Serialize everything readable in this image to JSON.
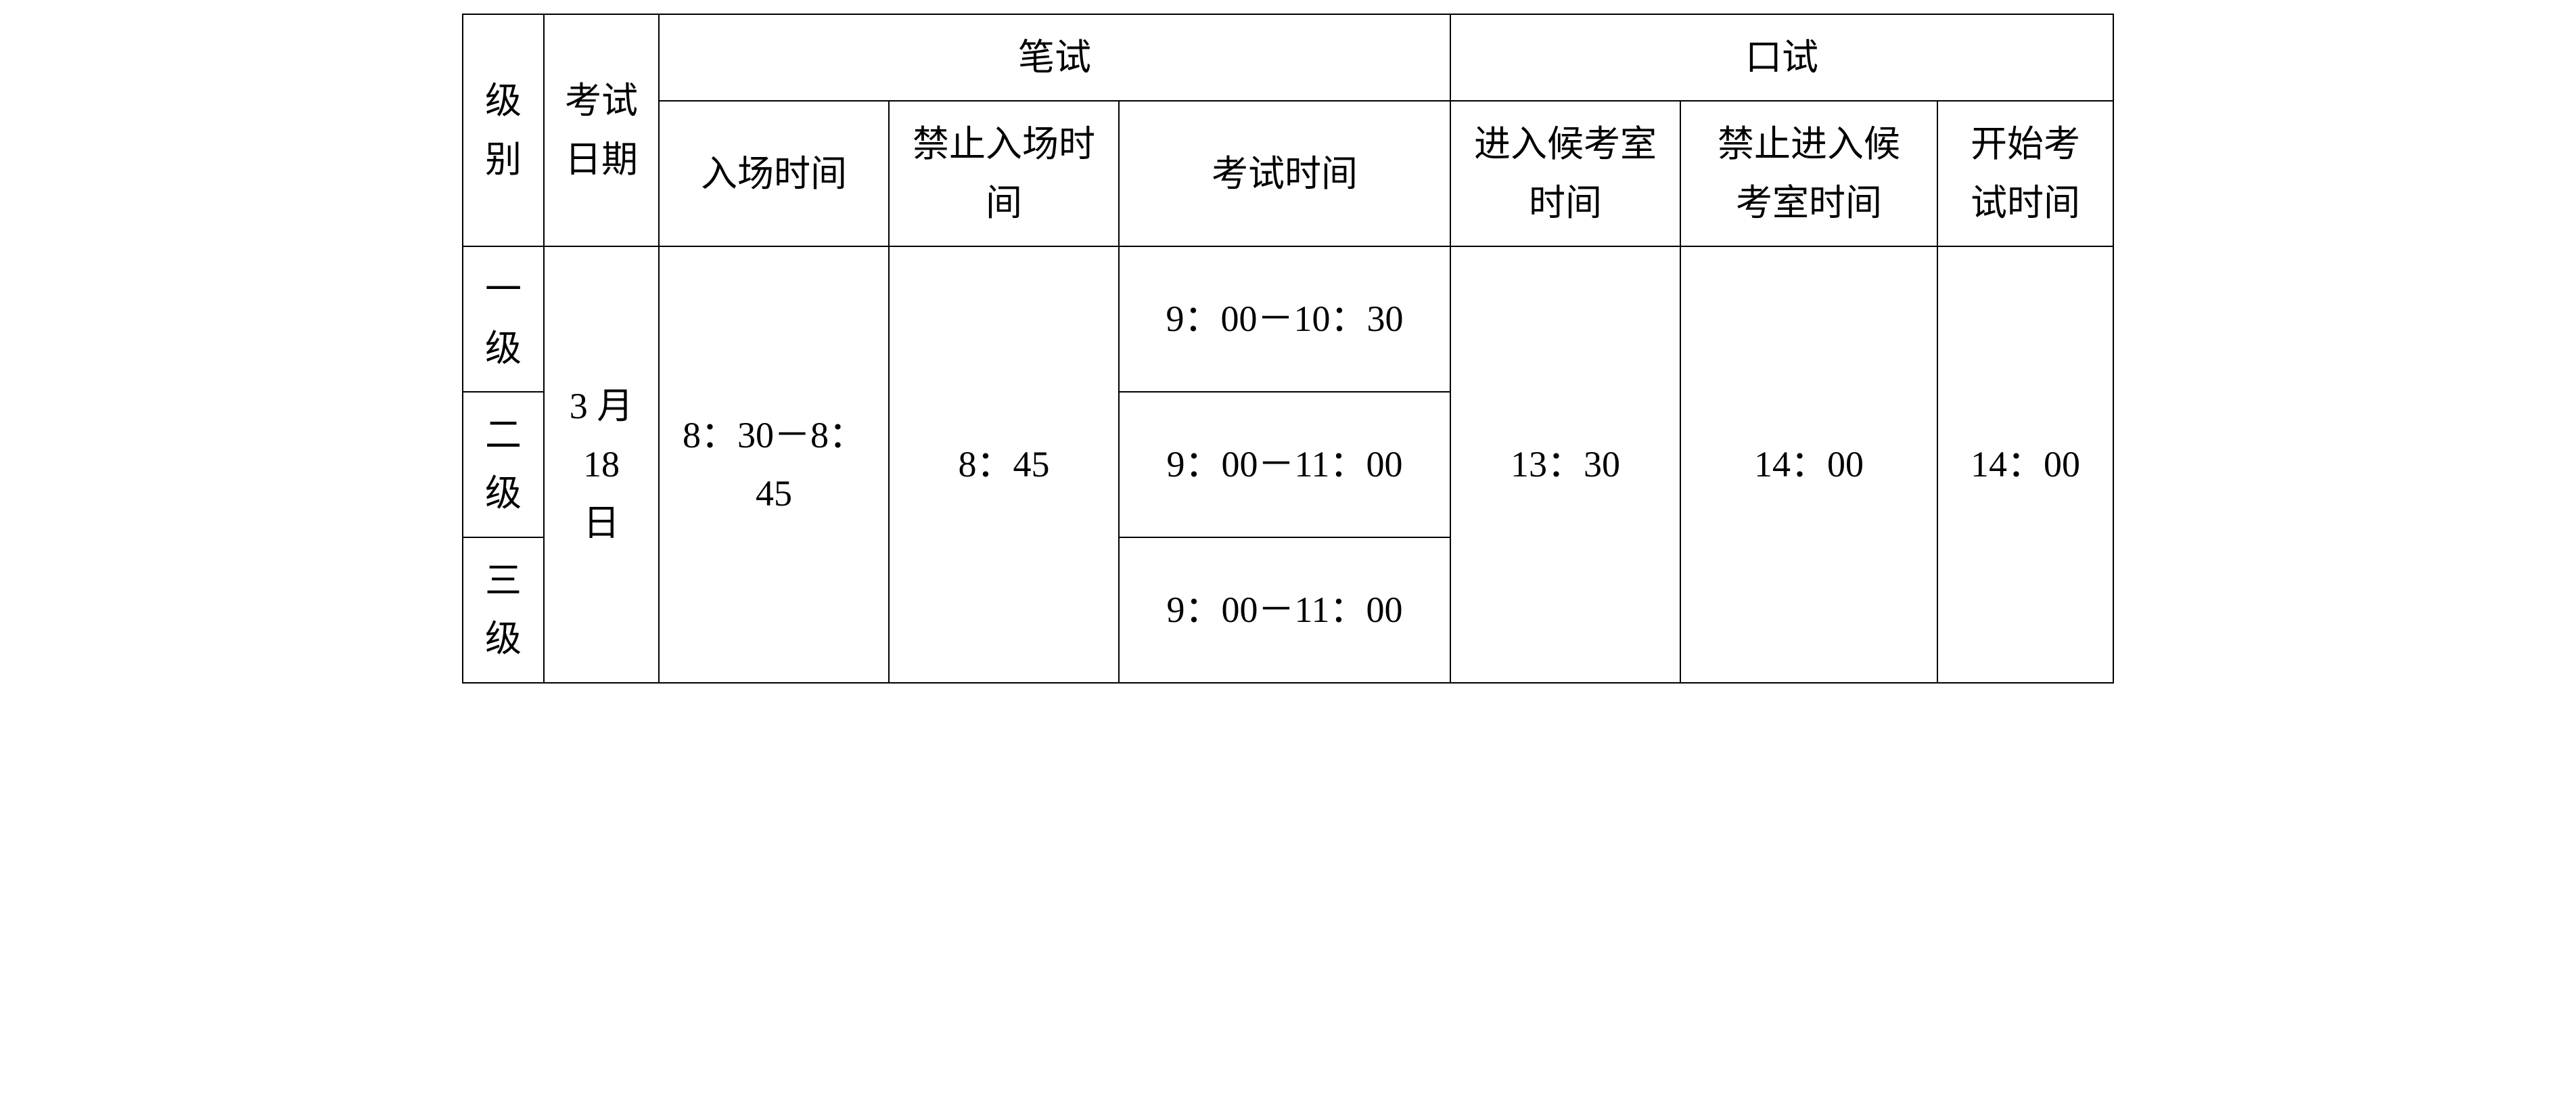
{
  "table": {
    "type": "table",
    "colors": {
      "border": "#000000",
      "background": "#ffffff",
      "text": "#000000"
    },
    "font_size": 54,
    "headers": {
      "level": "级\n别",
      "exam_date": "考试日期",
      "written_group": "笔试",
      "oral_group": "口试",
      "entry_time": "入场时间",
      "no_entry_time": "禁止入场时间",
      "exam_time": "考试时间",
      "waiting_room_time": "进入候考室时间",
      "no_waiting_room_time": "禁止进入候考室时间",
      "start_time": "开始考试时间"
    },
    "rows": [
      {
        "level": "一级",
        "exam_time": "9：00－10：30"
      },
      {
        "level": "二级",
        "exam_time": "9：00－11：00"
      },
      {
        "level": "三级",
        "exam_time": "9：00－11：00"
      }
    ],
    "merged": {
      "exam_date": "3 月 18 日",
      "entry_time": "8：30－8：45",
      "no_entry_time": "8：45",
      "waiting_room_time": "13：30",
      "no_waiting_room_time": "14：00",
      "start_time": "14：00"
    }
  }
}
